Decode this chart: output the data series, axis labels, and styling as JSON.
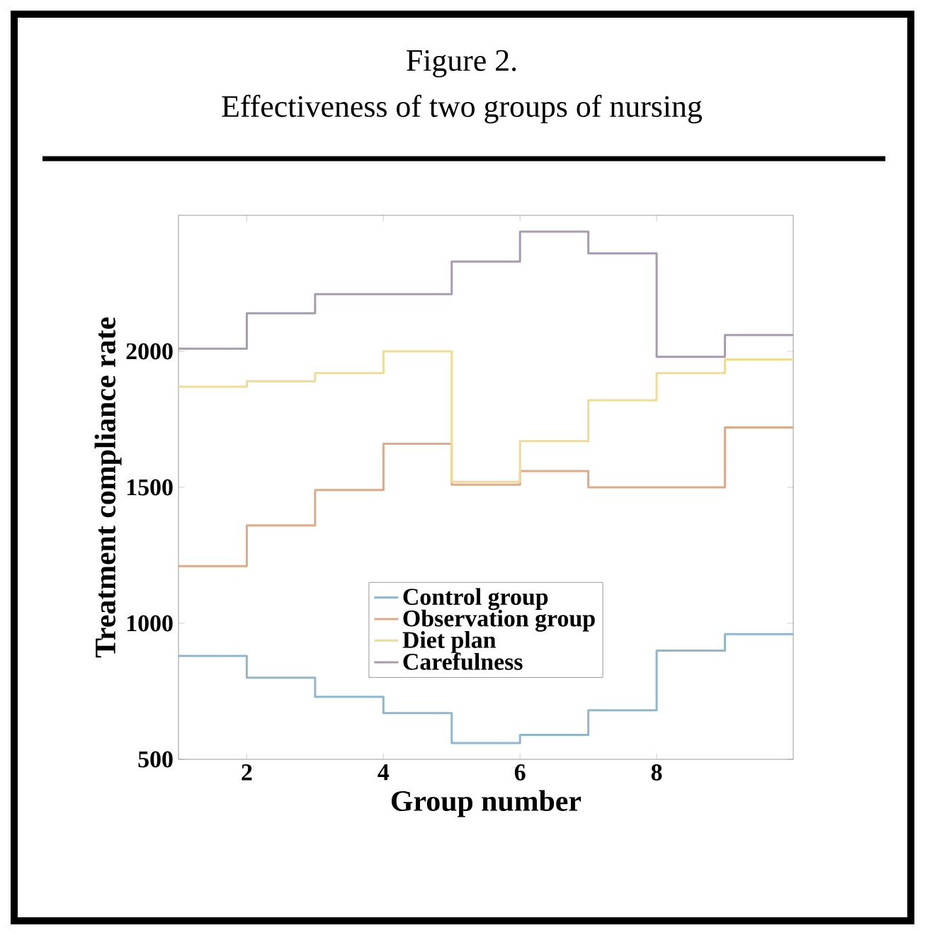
{
  "chart_data": {
    "type": "step",
    "title": "Figure 2.",
    "subtitle": "Effectiveness of two groups of nursing",
    "xlabel": "Group number",
    "ylabel": "Treatment compliance rate",
    "x": [
      1,
      2,
      3,
      4,
      5,
      6,
      7,
      8,
      9,
      10
    ],
    "series": [
      {
        "name": "Control group",
        "color": "#8fb8d0",
        "values": [
          880,
          800,
          730,
          670,
          560,
          590,
          680,
          900,
          960,
          960
        ]
      },
      {
        "name": "Observation group",
        "color": "#e0a98a",
        "values": [
          1210,
          1360,
          1490,
          1660,
          1510,
          1560,
          1500,
          1500,
          1720,
          1720
        ]
      },
      {
        "name": "Diet plan",
        "color": "#f0dc90",
        "values": [
          1870,
          1890,
          1920,
          2000,
          1520,
          1670,
          1820,
          1920,
          1970,
          1970
        ]
      },
      {
        "name": "Carefulness",
        "color": "#a89ab0",
        "values": [
          2010,
          2140,
          2210,
          2210,
          2330,
          2440,
          2360,
          1980,
          2060,
          2060
        ]
      }
    ],
    "xlim": [
      1,
      10
    ],
    "ylim": [
      500,
      2500
    ],
    "xticks": [
      2,
      4,
      6,
      8
    ],
    "yticks": [
      500,
      1000,
      1500,
      2000
    ],
    "legend": "bottom"
  }
}
